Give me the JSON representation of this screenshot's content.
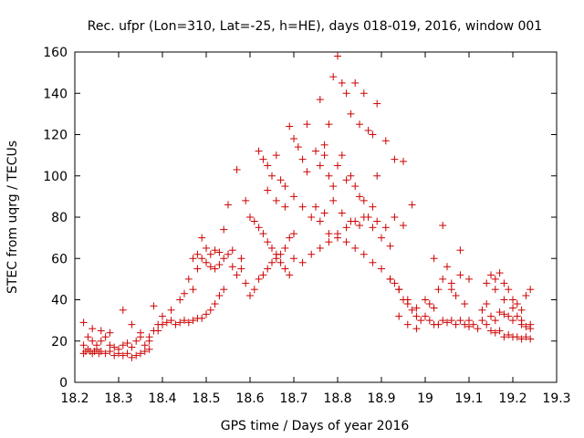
{
  "chart_data": {
    "type": "scatter",
    "title": "Rec. ufpr (Lon=310, Lat=-25, h=HE), days 018-019, 2016, window 001",
    "xlabel": "GPS time / Days of year 2016",
    "ylabel": "STEC from uqrg / TECUs",
    "xlim": [
      18.2,
      19.3
    ],
    "ylim": [
      0,
      160
    ],
    "xticks": [
      "18.2",
      "18.3",
      "18.4",
      "18.5",
      "18.6",
      "18.7",
      "18.8",
      "18.9",
      "19",
      "19.1",
      "19.2",
      "19.3"
    ],
    "yticks": [
      "0",
      "20",
      "40",
      "60",
      "80",
      "100",
      "120",
      "140",
      "160"
    ],
    "grid": false,
    "legend": "none",
    "marker": "plus",
    "marker_color": "#cc0000",
    "series": [
      {
        "points": [
          [
            18.22,
            14
          ],
          [
            18.225,
            15
          ],
          [
            18.23,
            16
          ],
          [
            18.235,
            15
          ],
          [
            18.24,
            14
          ],
          [
            18.245,
            15
          ],
          [
            18.25,
            16
          ],
          [
            18.255,
            14
          ],
          [
            18.26,
            15
          ],
          [
            18.27,
            14
          ],
          [
            18.28,
            15
          ],
          [
            18.29,
            13
          ],
          [
            18.3,
            14
          ],
          [
            18.31,
            13
          ],
          [
            18.32,
            14
          ],
          [
            18.33,
            12
          ],
          [
            18.34,
            13
          ],
          [
            18.35,
            14
          ],
          [
            18.36,
            15
          ],
          [
            18.37,
            16
          ],
          [
            18.22,
            18
          ],
          [
            18.23,
            22
          ],
          [
            18.24,
            20
          ],
          [
            18.25,
            18
          ],
          [
            18.26,
            20
          ],
          [
            18.27,
            22
          ],
          [
            18.28,
            18
          ],
          [
            18.29,
            17
          ],
          [
            18.3,
            16
          ],
          [
            18.31,
            18
          ],
          [
            18.32,
            19
          ],
          [
            18.33,
            17
          ],
          [
            18.34,
            20
          ],
          [
            18.35,
            22
          ],
          [
            18.36,
            18
          ],
          [
            18.37,
            20
          ],
          [
            18.22,
            29
          ],
          [
            18.24,
            26
          ],
          [
            18.26,
            25
          ],
          [
            18.28,
            24
          ],
          [
            18.31,
            35
          ],
          [
            18.33,
            28
          ],
          [
            18.35,
            24
          ],
          [
            18.37,
            22
          ],
          [
            18.39,
            25
          ],
          [
            18.38,
            25
          ],
          [
            18.39,
            28
          ],
          [
            18.4,
            28
          ],
          [
            18.41,
            29
          ],
          [
            18.42,
            30
          ],
          [
            18.43,
            28
          ],
          [
            18.44,
            29
          ],
          [
            18.45,
            30
          ],
          [
            18.46,
            29
          ],
          [
            18.47,
            30
          ],
          [
            18.48,
            31
          ],
          [
            18.49,
            31
          ],
          [
            18.5,
            33
          ],
          [
            18.51,
            35
          ],
          [
            18.52,
            38
          ],
          [
            18.53,
            42
          ],
          [
            18.54,
            45
          ],
          [
            18.38,
            37
          ],
          [
            18.4,
            32
          ],
          [
            18.42,
            35
          ],
          [
            18.44,
            40
          ],
          [
            18.45,
            43
          ],
          [
            18.46,
            50
          ],
          [
            18.47,
            45
          ],
          [
            18.48,
            55
          ],
          [
            18.49,
            60
          ],
          [
            18.5,
            58
          ],
          [
            18.51,
            56
          ],
          [
            18.52,
            55
          ],
          [
            18.53,
            57
          ],
          [
            18.54,
            60
          ],
          [
            18.55,
            62
          ],
          [
            18.56,
            56
          ],
          [
            18.57,
            52
          ],
          [
            18.58,
            55
          ],
          [
            18.47,
            60
          ],
          [
            18.48,
            62
          ],
          [
            18.49,
            70
          ],
          [
            18.5,
            65
          ],
          [
            18.51,
            62
          ],
          [
            18.52,
            64
          ],
          [
            18.53,
            63
          ],
          [
            18.54,
            74
          ],
          [
            18.55,
            86
          ],
          [
            18.57,
            103
          ],
          [
            18.56,
            64
          ],
          [
            18.58,
            60
          ],
          [
            18.59,
            48
          ],
          [
            18.6,
            42
          ],
          [
            18.61,
            45
          ],
          [
            18.62,
            50
          ],
          [
            18.63,
            52
          ],
          [
            18.64,
            55
          ],
          [
            18.65,
            58
          ],
          [
            18.66,
            60
          ],
          [
            18.67,
            62
          ],
          [
            18.68,
            65
          ],
          [
            18.69,
            70
          ],
          [
            18.7,
            72
          ],
          [
            18.59,
            88
          ],
          [
            18.6,
            80
          ],
          [
            18.61,
            78
          ],
          [
            18.62,
            75
          ],
          [
            18.63,
            72
          ],
          [
            18.64,
            68
          ],
          [
            18.65,
            65
          ],
          [
            18.66,
            62
          ],
          [
            18.67,
            58
          ],
          [
            18.68,
            55
          ],
          [
            18.69,
            52
          ],
          [
            18.62,
            112
          ],
          [
            18.63,
            108
          ],
          [
            18.64,
            105
          ],
          [
            18.65,
            100
          ],
          [
            18.66,
            110
          ],
          [
            18.67,
            98
          ],
          [
            18.68,
            95
          ],
          [
            18.69,
            124
          ],
          [
            18.7,
            118
          ],
          [
            18.71,
            114
          ],
          [
            18.72,
            108
          ],
          [
            18.73,
            102
          ],
          [
            18.64,
            93
          ],
          [
            18.66,
            88
          ],
          [
            18.68,
            85
          ],
          [
            18.7,
            90
          ],
          [
            18.72,
            85
          ],
          [
            18.74,
            80
          ],
          [
            18.76,
            78
          ],
          [
            18.78,
            72
          ],
          [
            18.8,
            70
          ],
          [
            18.82,
            68
          ],
          [
            18.84,
            65
          ],
          [
            18.86,
            62
          ],
          [
            18.88,
            58
          ],
          [
            18.9,
            55
          ],
          [
            18.92,
            50
          ],
          [
            18.94,
            45
          ],
          [
            18.96,
            40
          ],
          [
            18.98,
            36
          ],
          [
            18.7,
            60
          ],
          [
            18.72,
            58
          ],
          [
            18.74,
            62
          ],
          [
            18.76,
            65
          ],
          [
            18.78,
            68
          ],
          [
            18.8,
            72
          ],
          [
            18.82,
            75
          ],
          [
            18.84,
            78
          ],
          [
            18.86,
            80
          ],
          [
            18.88,
            75
          ],
          [
            18.9,
            70
          ],
          [
            18.92,
            66
          ],
          [
            18.73,
            125
          ],
          [
            18.75,
            112
          ],
          [
            18.76,
            137
          ],
          [
            18.77,
            115
          ],
          [
            18.78,
            125
          ],
          [
            18.79,
            148
          ],
          [
            18.8,
            158
          ],
          [
            18.81,
            145
          ],
          [
            18.82,
            140
          ],
          [
            18.83,
            130
          ],
          [
            18.84,
            145
          ],
          [
            18.85,
            125
          ],
          [
            18.86,
            140
          ],
          [
            18.87,
            122
          ],
          [
            18.88,
            120
          ],
          [
            18.89,
            135
          ],
          [
            18.76,
            105
          ],
          [
            18.77,
            110
          ],
          [
            18.78,
            100
          ],
          [
            18.79,
            95
          ],
          [
            18.8,
            105
          ],
          [
            18.81,
            110
          ],
          [
            18.82,
            98
          ],
          [
            18.83,
            100
          ],
          [
            18.84,
            95
          ],
          [
            18.85,
            90
          ],
          [
            18.86,
            88
          ],
          [
            18.88,
            85
          ],
          [
            18.89,
            100
          ],
          [
            18.91,
            117
          ],
          [
            18.93,
            108
          ],
          [
            18.95,
            107
          ],
          [
            18.75,
            85
          ],
          [
            18.77,
            82
          ],
          [
            18.79,
            88
          ],
          [
            18.81,
            82
          ],
          [
            18.83,
            78
          ],
          [
            18.85,
            76
          ],
          [
            18.87,
            80
          ],
          [
            18.89,
            78
          ],
          [
            18.91,
            75
          ],
          [
            18.93,
            80
          ],
          [
            18.95,
            76
          ],
          [
            18.97,
            86
          ],
          [
            18.92,
            50
          ],
          [
            18.93,
            48
          ],
          [
            18.94,
            45
          ],
          [
            18.95,
            40
          ],
          [
            18.96,
            38
          ],
          [
            18.97,
            35
          ],
          [
            18.98,
            32
          ],
          [
            18.99,
            30
          ],
          [
            19.0,
            32
          ],
          [
            19.01,
            30
          ],
          [
            19.02,
            28
          ],
          [
            19.03,
            28
          ],
          [
            19.04,
            30
          ],
          [
            19.05,
            29
          ],
          [
            19.06,
            30
          ],
          [
            19.07,
            28
          ],
          [
            19.08,
            30
          ],
          [
            19.09,
            28
          ],
          [
            19.1,
            27
          ],
          [
            19.11,
            28
          ],
          [
            18.94,
            32
          ],
          [
            18.96,
            28
          ],
          [
            18.98,
            26
          ],
          [
            19.0,
            40
          ],
          [
            19.01,
            38
          ],
          [
            19.02,
            36
          ],
          [
            19.03,
            45
          ],
          [
            19.04,
            50
          ],
          [
            19.05,
            56
          ],
          [
            19.06,
            48
          ],
          [
            19.07,
            42
          ],
          [
            19.08,
            52
          ],
          [
            19.09,
            38
          ],
          [
            19.1,
            30
          ],
          [
            19.04,
            76
          ],
          [
            19.08,
            64
          ],
          [
            19.02,
            60
          ],
          [
            19.06,
            45
          ],
          [
            19.1,
            50
          ],
          [
            19.12,
            26
          ],
          [
            19.13,
            30
          ],
          [
            19.14,
            28
          ],
          [
            19.15,
            25
          ],
          [
            19.16,
            24
          ],
          [
            19.17,
            25
          ],
          [
            19.18,
            22
          ],
          [
            19.19,
            23
          ],
          [
            19.2,
            22
          ],
          [
            19.21,
            22
          ],
          [
            19.22,
            21
          ],
          [
            19.23,
            22
          ],
          [
            19.24,
            21
          ],
          [
            19.13,
            35
          ],
          [
            19.14,
            38
          ],
          [
            19.15,
            32
          ],
          [
            19.16,
            30
          ],
          [
            19.17,
            34
          ],
          [
            19.18,
            33
          ],
          [
            19.19,
            32
          ],
          [
            19.2,
            30
          ],
          [
            19.21,
            32
          ],
          [
            19.22,
            28
          ],
          [
            19.23,
            27
          ],
          [
            19.24,
            28
          ],
          [
            19.15,
            52
          ],
          [
            19.16,
            50
          ],
          [
            19.17,
            53
          ],
          [
            19.18,
            48
          ],
          [
            19.19,
            45
          ],
          [
            19.2,
            40
          ],
          [
            19.21,
            38
          ],
          [
            19.22,
            35
          ],
          [
            19.23,
            42
          ],
          [
            19.24,
            45
          ],
          [
            19.14,
            48
          ],
          [
            19.16,
            45
          ],
          [
            19.18,
            40
          ],
          [
            19.2,
            36
          ],
          [
            19.22,
            30
          ],
          [
            19.24,
            26
          ]
        ]
      }
    ]
  }
}
